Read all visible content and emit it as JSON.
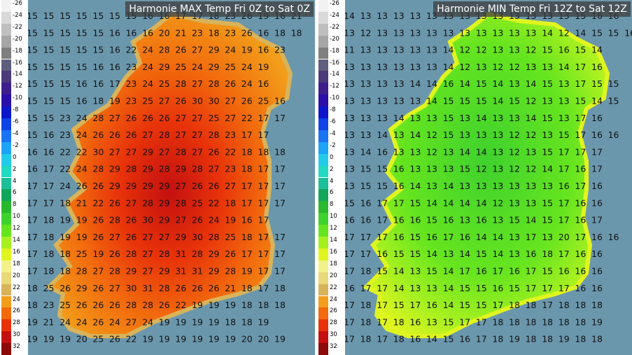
{
  "scale_labels": [
    "-26",
    "-24",
    "-22",
    "-20",
    "-18",
    "-16",
    "-14",
    "-12",
    "-10",
    "-8",
    "-6",
    "-4",
    "-2",
    "0",
    "2",
    "4",
    "6",
    "8",
    "10",
    "12",
    "14",
    "16",
    "18",
    "20",
    "22",
    "24",
    "26",
    "28",
    "30",
    "32"
  ],
  "scale_colors": [
    "#f2f2f2",
    "#d9d9d9",
    "#bfbfbf",
    "#a6a6a6",
    "#7f7f7f",
    "#5e5e7e",
    "#4a3a7a",
    "#3d1f8c",
    "#2a0fa8",
    "#0d17c9",
    "#0f43e6",
    "#1a73f2",
    "#1ea3f5",
    "#22cce8",
    "#22d9c2",
    "#1bbf9a",
    "#12a65c",
    "#2ab82e",
    "#3fd12e",
    "#66e51f",
    "#a6f020",
    "#e0f51f",
    "#f2f28a",
    "#e8d97a",
    "#d9b35a",
    "#f29e1a",
    "#f26a0d",
    "#e8330a",
    "#c41010",
    "#8c0a0a"
  ],
  "left": {
    "title": "Harmonie MAX Temp Fri 0Z to Sat 0Z",
    "rows": [
      "15 15 15 15 15 15 15 16 16 17 17 18 23 26 19 16 21",
      "15 15 15 15 15 16 16 16 20 21 23 18 23 26 16 18 18",
      "15 15 15 15 15 16 22 24 28 26 27 29 24 19 16 23",
      "15 15 15 15 16 16 23 24 29 25 24 29 25 24 19",
      "15 15 15 16 16 17 23 24 25 28 27 28 26 24 16",
      "15 15 15 16 18 19 23 25 27 26 30 30 27 26 25 16",
      "15 15 23 24 28 27 26 26 26 27 27 25 27 22 17 17",
      "15 16 23 24 26 26 26 27 28 27 27 28 23 17 17",
      "16 16 22 22 30 27 27 29 27 28 27 26 22 18 18 18",
      "16 17 22 24 28 29 28 29 28 29 28 27 23 18 17 17",
      "17 17 24 26 26 29 29 29 29 27 26 26 27 17 17 17",
      "17 17 18 21 22 26 27 28 29 28 25 22 18 17 17 17",
      "17 18 19 19 26 28 26 30 29 27 26 24 19 16 17",
      "17 18 19 19 26 27 26 27 27 29 30 28 25 18 17 17",
      "17 18 18 25 19 26 28 27 28 31 28 29 26 17 17 17",
      "17 18 18 28 27 28 29 27 29 31 31 29 28 19 17 17",
      "18 25 26 29 26 27 30 31 28 26 26 26 21 18 17 18",
      "18 23 25 26 26 26 28 28 26 22 19 19 19 18 18 18",
      "19 21 24 24 26 24 27 24 19 19 19 19 18 18 19",
      "19 19 19 20 25 26 22 19 19 19 19 19 19 20 20 19"
    ]
  },
  "right": {
    "title": "Harmonie MIN Temp Fri 12Z to Sat 12Z",
    "rows": [
      "14 13 13 13 13 13 13 13 13 13 13 13 13 13 15 16 16",
      "13 12 13 13 13 13 13 13 13 13 13 13 14 12 14 15 15 16",
      "11 13 13 13 13 13 14 12 12 13 13 12 15 16 15 14",
      "13 13 13 13 13 13 14 12 13 12 12 13 13 14 17 16",
      "13 13 13 13 14 14 16 14 15 14 13 14 15 13 17 15 15",
      "13 13 13 13 13 14 15 15 15 14 15 12 13 13 15 14 15",
      "13 13 13 14 13 13 15 13 14 13 13 14 15 13 17 16",
      "13 13 14 13 14 12 15 13 13 13 12 12 13 15 17 16 16",
      "13 14 16 13 13 12 13 14 14 13 12 13 15 17 17 17",
      "13 15 15 16 13 13 13 15 12 13 12 12 14 17 16 17",
      "13 15 15 16 14 13 14 13 13 13 13 13 13 16 17 16",
      "15 16 17 17 15 14 14 14 14 12 13 13 15 17 16 16",
      "16 16 17 16 16 15 16 13 16 13 15 14 15 17 16 17",
      "17 17 17 16 15 16 17 16 14 14 13 17 13 20 17 16 16",
      "17 17 16 15 15 14 13 14 15 14 13 16 18 17 16 16",
      "17 18 15 14 13 15 14 17 16 17 16 17 15 16 16 16",
      "16 17 17 14 13 13 14 15 15 16 15 17 17 17 16 16",
      "17 18 17 15 17 16 14 15 15 17 18 18 17 18 18 18",
      "17 18 17 18 16 13 15 17 17 18 18 18 18 18 18 19",
      "17 18 17 18 16 14 15 16 17 18 19 18 18 19 18 18"
    ]
  }
}
